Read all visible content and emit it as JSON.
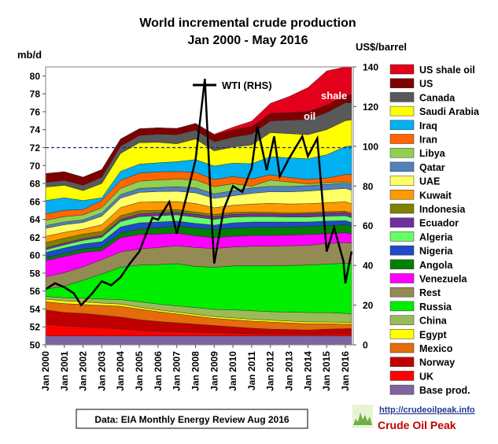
{
  "chart_data": {
    "type": "area",
    "title": "World incremental crude production",
    "subtitle": "Jan 2000 - May 2016",
    "ylabel": "mb/d",
    "ylabel_right": "US$/barrel",
    "ylim": [
      50,
      81
    ],
    "ylim_right": [
      0,
      140
    ],
    "yticks": [
      "50",
      "52",
      "54",
      "56",
      "58",
      "60",
      "62",
      "64",
      "66",
      "68",
      "70",
      "72",
      "74",
      "76",
      "78",
      "80"
    ],
    "yticks_right": [
      "0",
      "20",
      "40",
      "60",
      "80",
      "100",
      "120",
      "140"
    ],
    "xticks": [
      "Jan 2000",
      "Jan 2001",
      "Jan 2002",
      "Jan 2003",
      "Jan 2004",
      "Jan 2005",
      "Jan 2006",
      "Jan 2007",
      "Jan 2008",
      "Jan 2009",
      "Jan 2010",
      "Jan 2011",
      "Jan 2012",
      "Jan 2013",
      "Jan 2014",
      "Jan 2015",
      "Jan 2016"
    ],
    "x_years": [
      2000.0,
      2001.0,
      2002.0,
      2003.0,
      2004.0,
      2005.0,
      2006.0,
      2007.0,
      2008.0,
      2009.0,
      2010.0,
      2011.0,
      2012.0,
      2013.0,
      2014.0,
      2015.0,
      2016.0,
      2016.33
    ],
    "reference_line": {
      "value": 72,
      "style": "dashed"
    },
    "annotations": [
      "shale",
      "oil"
    ],
    "wti_label": "WTI (RHS)",
    "source": "Data: EIA Monthly Energy Review Aug 2016",
    "brand_url": "http://crudeoilpeak.info",
    "brand_name": "Crude Oil Peak",
    "series": [
      {
        "name": "Base prod.",
        "color": "#8064a2",
        "values": [
          51.0,
          51.0,
          51.0,
          51.0,
          51.0,
          51.0,
          51.0,
          51.0,
          51.0,
          51.0,
          51.0,
          51.0,
          51.0,
          51.0,
          51.0,
          51.0,
          51.0,
          51.0
        ]
      },
      {
        "name": "UK",
        "color": "#ff0000",
        "values": [
          1.3,
          1.1,
          1.0,
          0.9,
          0.8,
          0.6,
          0.5,
          0.45,
          0.4,
          0.35,
          0.3,
          0.25,
          0.2,
          0.2,
          0.15,
          0.2,
          0.2,
          0.2
        ]
      },
      {
        "name": "Norway",
        "color": "#c00000",
        "values": [
          1.6,
          1.5,
          1.5,
          1.4,
          1.3,
          1.2,
          1.1,
          1.0,
          0.9,
          0.8,
          0.7,
          0.6,
          0.55,
          0.5,
          0.5,
          0.55,
          0.6,
          0.6
        ]
      },
      {
        "name": "Mexico",
        "color": "#e46c0a",
        "values": [
          0.9,
          1.0,
          1.0,
          1.1,
          1.2,
          1.2,
          1.1,
          1.0,
          0.9,
          0.8,
          0.8,
          0.8,
          0.8,
          0.75,
          0.7,
          0.6,
          0.5,
          0.5
        ]
      },
      {
        "name": "Egypt",
        "color": "#ffff00",
        "values": [
          0.3,
          0.3,
          0.3,
          0.25,
          0.25,
          0.2,
          0.2,
          0.2,
          0.2,
          0.2,
          0.2,
          0.2,
          0.2,
          0.2,
          0.2,
          0.2,
          0.2,
          0.2
        ]
      },
      {
        "name": "China",
        "color": "#9bbb59",
        "values": [
          0.3,
          0.35,
          0.4,
          0.45,
          0.5,
          0.6,
          0.65,
          0.7,
          0.75,
          0.8,
          0.9,
          0.95,
          0.95,
          1.0,
          1.05,
          1.05,
          1.0,
          0.95
        ]
      },
      {
        "name": "Russia",
        "color": "#00ee00",
        "values": [
          0.8,
          1.3,
          2.0,
          2.8,
          3.6,
          4.1,
          4.4,
          4.7,
          4.6,
          4.7,
          4.9,
          5.0,
          5.1,
          5.2,
          5.3,
          5.4,
          5.6,
          5.6
        ]
      },
      {
        "name": "Rest",
        "color": "#948a54",
        "values": [
          1.4,
          1.5,
          1.5,
          1.6,
          1.7,
          1.8,
          1.9,
          2.0,
          2.1,
          2.1,
          2.1,
          2.2,
          2.2,
          2.2,
          2.2,
          2.3,
          2.3,
          2.3
        ]
      },
      {
        "name": "Venezuela",
        "color": "#ff00ff",
        "values": [
          1.8,
          1.8,
          1.6,
          1.0,
          1.6,
          1.6,
          1.5,
          1.4,
          1.3,
          1.2,
          1.2,
          1.2,
          1.2,
          1.2,
          1.2,
          1.1,
          1.1,
          1.0
        ]
      },
      {
        "name": "Angola",
        "color": "#008000",
        "values": [
          0.3,
          0.35,
          0.4,
          0.4,
          0.5,
          0.6,
          0.7,
          0.8,
          0.9,
          0.9,
          0.9,
          0.9,
          0.9,
          0.9,
          0.9,
          0.9,
          0.9,
          0.9
        ]
      },
      {
        "name": "Nigeria",
        "color": "#1f49c9",
        "values": [
          0.6,
          0.6,
          0.55,
          0.6,
          0.7,
          0.7,
          0.65,
          0.55,
          0.5,
          0.5,
          0.6,
          0.6,
          0.6,
          0.55,
          0.5,
          0.5,
          0.45,
          0.4
        ]
      },
      {
        "name": "Algeria",
        "color": "#66ff66",
        "values": [
          0.3,
          0.35,
          0.4,
          0.5,
          0.6,
          0.7,
          0.7,
          0.7,
          0.7,
          0.65,
          0.65,
          0.6,
          0.6,
          0.55,
          0.55,
          0.55,
          0.55,
          0.55
        ]
      },
      {
        "name": "Ecuador",
        "color": "#7030a0",
        "values": [
          0.2,
          0.2,
          0.2,
          0.2,
          0.25,
          0.3,
          0.3,
          0.3,
          0.3,
          0.3,
          0.3,
          0.3,
          0.3,
          0.3,
          0.35,
          0.35,
          0.35,
          0.35
        ]
      },
      {
        "name": "Indonesia",
        "color": "#808000",
        "values": [
          0.6,
          0.55,
          0.5,
          0.45,
          0.4,
          0.35,
          0.3,
          0.28,
          0.26,
          0.24,
          0.22,
          0.2,
          0.18,
          0.16,
          0.15,
          0.15,
          0.15,
          0.15
        ]
      },
      {
        "name": "Kuwait",
        "color": "#ff9900",
        "values": [
          0.7,
          0.65,
          0.55,
          0.75,
          0.9,
          0.95,
          0.95,
          0.9,
          0.95,
          0.75,
          0.8,
          0.9,
          1.0,
          1.0,
          1.0,
          1.0,
          1.05,
          1.05
        ]
      },
      {
        "name": "UAE",
        "color": "#ffff66",
        "values": [
          0.9,
          0.85,
          0.75,
          0.95,
          1.05,
          1.1,
          1.15,
          1.15,
          1.2,
          1.05,
          1.05,
          1.2,
          1.3,
          1.35,
          1.4,
          1.45,
          1.5,
          1.5
        ]
      },
      {
        "name": "Qatar",
        "color": "#4f81bd",
        "values": [
          0.3,
          0.3,
          0.3,
          0.35,
          0.4,
          0.45,
          0.45,
          0.5,
          0.55,
          0.5,
          0.55,
          0.6,
          0.6,
          0.6,
          0.6,
          0.6,
          0.6,
          0.6
        ]
      },
      {
        "name": "Libya",
        "color": "#92d050",
        "values": [
          0.6,
          0.6,
          0.55,
          0.6,
          0.7,
          0.8,
          0.85,
          0.85,
          0.9,
          0.8,
          0.8,
          0.2,
          0.7,
          0.5,
          0.2,
          0.2,
          0.15,
          0.15
        ]
      },
      {
        "name": "Iran",
        "color": "#ff6600",
        "values": [
          0.7,
          0.7,
          0.6,
          0.8,
          0.9,
          0.9,
          0.9,
          0.85,
          0.85,
          0.8,
          0.8,
          0.8,
          0.6,
          0.5,
          0.5,
          0.5,
          0.8,
          1.0
        ]
      },
      {
        "name": "Iraq",
        "color": "#00b0f0",
        "values": [
          1.5,
          1.4,
          1.0,
          0.3,
          1.0,
          1.0,
          1.0,
          1.1,
          1.4,
          1.5,
          1.5,
          1.7,
          2.0,
          2.2,
          2.3,
          2.6,
          3.1,
          3.2
        ]
      },
      {
        "name": "Saudi Arabia",
        "color": "#ffff00",
        "values": [
          1.5,
          1.4,
          1.1,
          1.6,
          2.0,
          2.4,
          2.3,
          2.0,
          2.3,
          1.7,
          1.8,
          2.1,
          2.7,
          2.7,
          2.7,
          2.8,
          2.9,
          2.9
        ]
      },
      {
        "name": "Canada",
        "color": "#595959",
        "values": [
          0.5,
          0.55,
          0.6,
          0.7,
          0.8,
          0.8,
          0.9,
          1.0,
          1.0,
          1.0,
          1.1,
          1.2,
          1.3,
          1.5,
          1.7,
          1.9,
          2.0,
          1.9
        ]
      },
      {
        "name": "US",
        "color": "#800000",
        "values": [
          1.0,
          0.95,
          0.9,
          0.85,
          0.8,
          0.75,
          0.7,
          0.7,
          0.7,
          0.75,
          0.8,
          0.85,
          0.85,
          0.85,
          0.85,
          0.85,
          0.85,
          0.85
        ]
      },
      {
        "name": "US shale oil",
        "color": "#e3001b",
        "values": [
          0.0,
          0.0,
          0.0,
          0.0,
          0.0,
          0.0,
          0.0,
          0.0,
          0.05,
          0.1,
          0.3,
          0.6,
          1.1,
          1.8,
          2.7,
          3.8,
          4.2,
          3.8
        ]
      }
    ],
    "wti": {
      "x": [
        2000.0,
        2000.5,
        2001.0,
        2001.5,
        2001.9,
        2002.5,
        2003.0,
        2003.5,
        2004.0,
        2004.5,
        2005.0,
        2005.7,
        2006.0,
        2006.6,
        2007.0,
        2007.5,
        2008.0,
        2008.5,
        2008.9,
        2009.0,
        2009.5,
        2010.0,
        2010.5,
        2011.0,
        2011.3,
        2011.8,
        2012.2,
        2012.5,
        2013.0,
        2013.7,
        2014.0,
        2014.5,
        2014.9,
        2015.0,
        2015.4,
        2015.9,
        2016.0,
        2016.33
      ],
      "y": [
        28,
        31,
        29,
        26,
        20,
        26,
        32,
        30,
        34,
        41,
        47,
        64,
        63,
        72,
        56,
        74,
        93,
        134,
        57,
        41,
        68,
        80,
        77,
        89,
        110,
        88,
        105,
        85,
        94,
        105,
        95,
        104,
        59,
        47,
        59,
        42,
        31,
        47
      ]
    }
  }
}
